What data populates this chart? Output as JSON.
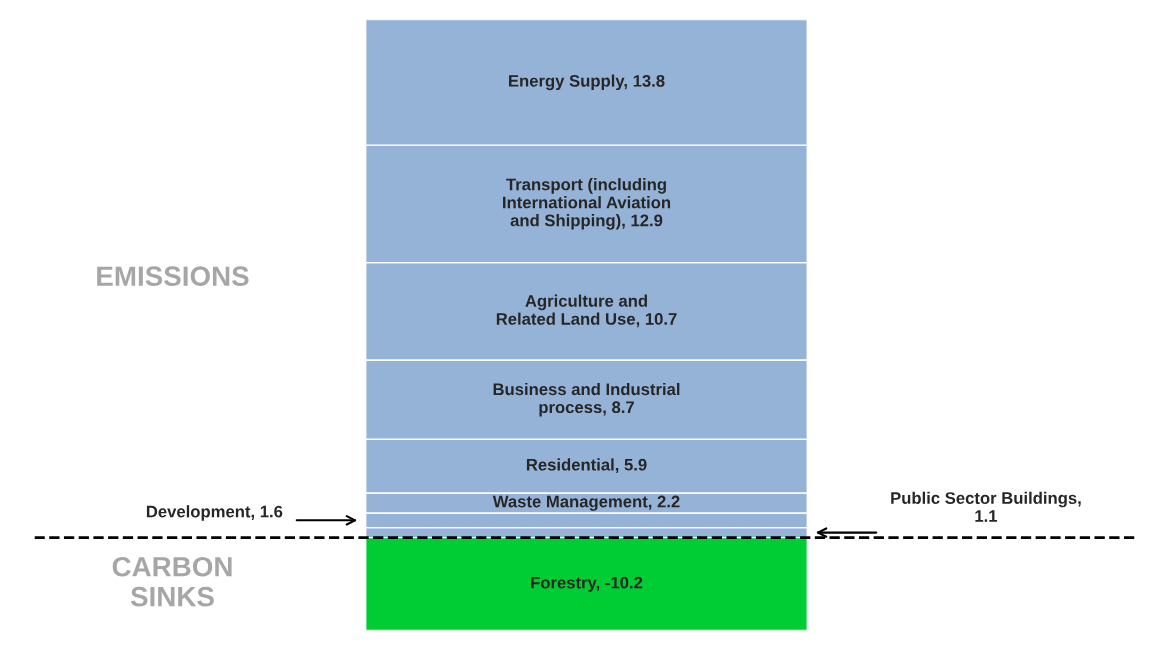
{
  "chart_data": {
    "type": "bar",
    "stacked": true,
    "categories": [
      null
    ],
    "series": [
      {
        "color": "#95b3d7",
        "values": [
          1.1
        ],
        "value_labels": [
          null
        ]
      },
      {
        "color": "#95b3d7",
        "values": [
          1.6
        ],
        "value_labels": [
          null
        ]
      },
      {
        "color": "#95b3d7",
        "values": [
          2.2
        ],
        "value_labels": [
          "Waste Management, 2.2"
        ]
      },
      {
        "color": "#95b3d7",
        "values": [
          5.9
        ],
        "value_labels": [
          "Residential, 5.9"
        ]
      },
      {
        "color": "#95b3d7",
        "values": [
          8.7
        ],
        "value_labels": [
          "Business and Industrial\nprocess, 8.7"
        ]
      },
      {
        "color": "#95b3d7",
        "values": [
          10.7
        ],
        "value_labels": [
          "Agriculture and\nRelated Land Use, 10.7"
        ]
      },
      {
        "color": "#95b3d7",
        "values": [
          12.9
        ],
        "value_labels": [
          "Transport (including\nInternational Aviation\nand Shipping), 12.9"
        ]
      },
      {
        "color": "#95b3d7",
        "values": [
          13.8
        ],
        "value_labels": [
          "Energy Supply, 13.8"
        ]
      },
      {
        "color": "#00cc33",
        "values": [
          -10.2
        ],
        "value_labels": [
          "Forestry, -10.2"
        ]
      }
    ],
    "tick_labels": false,
    "grid": false,
    "legend": false,
    "ref_lines": [
      {
        "axis": "y",
        "value": 0,
        "color": "#000000",
        "line_style": "dashed"
      }
    ],
    "annotations": [
      "EMISSIONS",
      "CARBON\nSINKS",
      "Development, 1.6",
      "Public Sector Buildings,\n1.1"
    ]
  }
}
